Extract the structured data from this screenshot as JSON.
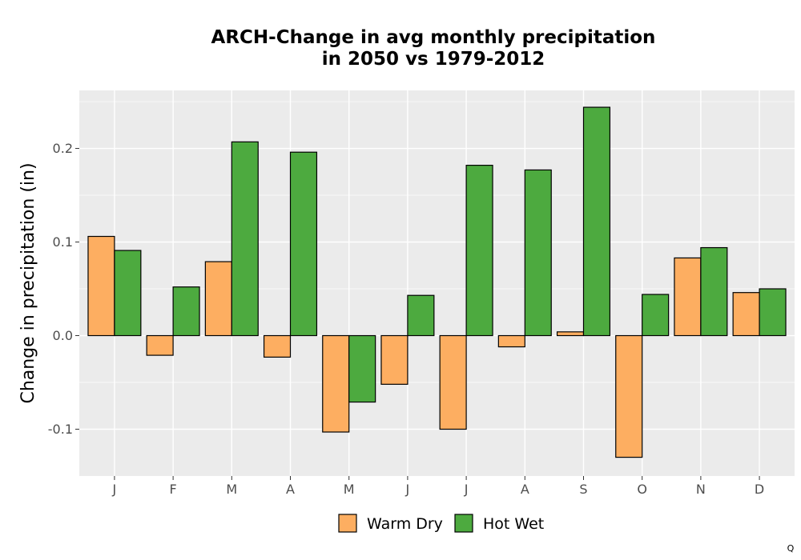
{
  "chart_data": {
    "type": "bar",
    "title_lines": [
      "ARCH-Change in avg monthly precipitation",
      "in 2050 vs 1979-2012"
    ],
    "xlabel": "",
    "ylabel": "Change in precipitation (in)",
    "categories": [
      "J",
      "F",
      "M",
      "A",
      "M",
      "J",
      "J",
      "A",
      "S",
      "O",
      "N",
      "D"
    ],
    "series": [
      {
        "name": "Warm Dry",
        "color": "#fdae61",
        "values": [
          0.106,
          -0.021,
          0.079,
          -0.023,
          -0.103,
          -0.052,
          -0.1,
          -0.012,
          0.004,
          -0.13,
          0.083,
          0.046
        ]
      },
      {
        "name": "Hot Wet",
        "color": "#4daa3f",
        "values": [
          0.091,
          0.052,
          0.207,
          0.196,
          -0.071,
          0.043,
          0.182,
          0.177,
          0.244,
          0.044,
          0.094,
          0.05
        ]
      }
    ],
    "ylim": [
      -0.15,
      0.262
    ],
    "yticks": [
      -0.1,
      0.0,
      0.1,
      0.2
    ],
    "ytick_labels": [
      "-0.1",
      "0.0",
      "0.1",
      "0.2"
    ],
    "grid": true,
    "legend_position": "bottom",
    "panel_background": "#ebebeb",
    "bar_outline": "#000000"
  },
  "corner_mark": "Q"
}
